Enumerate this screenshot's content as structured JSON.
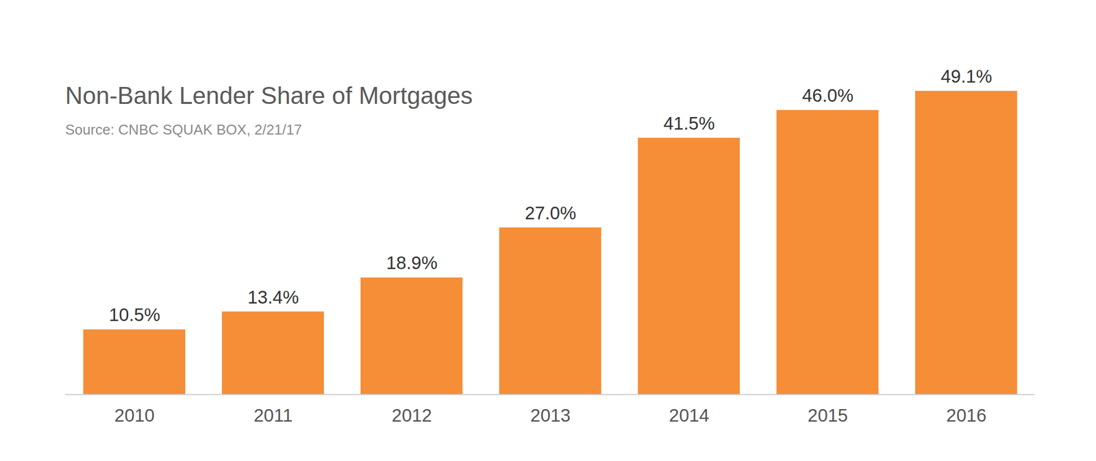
{
  "chart_data": {
    "type": "bar",
    "title": "Non-Bank Lender Share of Mortgages",
    "subtitle": "Source: CNBC SQUAK BOX, 2/21/17",
    "categories": [
      "2010",
      "2011",
      "2012",
      "2013",
      "2014",
      "2015",
      "2016"
    ],
    "values": [
      10.5,
      13.4,
      18.9,
      27,
      41.5,
      46,
      49.1
    ],
    "value_labels": [
      "10.5%",
      "13.4%",
      "18.9%",
      "27.0%",
      "41.5%",
      "46.0%",
      "49.1%"
    ],
    "color": "#f68d37",
    "ylim": [
      0,
      50
    ],
    "grid": false,
    "data_labels": true,
    "tick_labels": "x"
  }
}
